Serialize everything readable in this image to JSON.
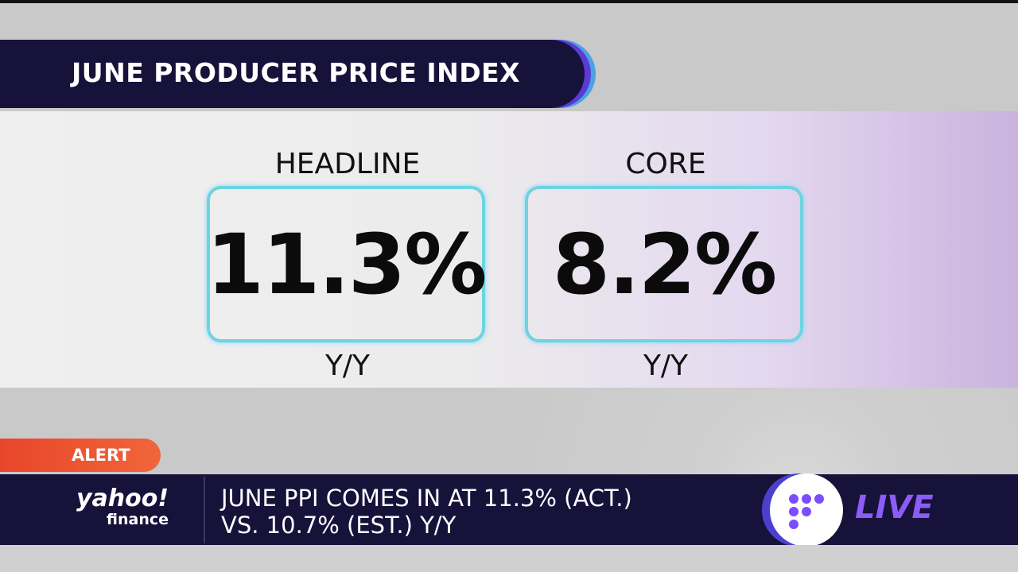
{
  "header": {
    "title": "JUNE PRODUCER PRICE INDEX"
  },
  "panels": [
    {
      "label": "HEADLINE",
      "value": "11.3%",
      "unit": "Y/Y"
    },
    {
      "label": "CORE",
      "value": "8.2%",
      "unit": "Y/Y"
    }
  ],
  "ticker": {
    "alert": "ALERT",
    "lines": [
      "JUNE PPI COMES IN AT 11.3% (ACT.)",
      "VS. 10.7% (EST.) Y/Y"
    ],
    "logo": {
      "brand": "yahoo!",
      "sub": "finance"
    },
    "live": "LIVE"
  }
}
